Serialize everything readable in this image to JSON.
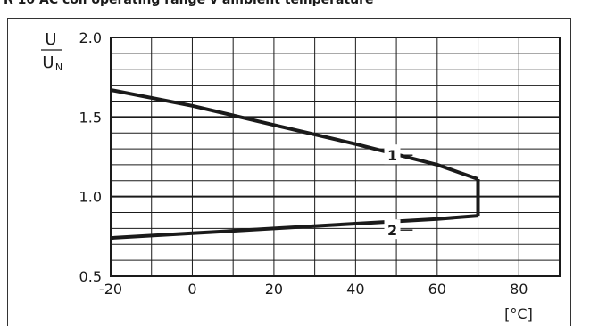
{
  "title": "R 10 AC coil operating range v ambient temperature",
  "chart_data": {
    "type": "line",
    "title": "AC coil operating range v ambient temperature",
    "xlabel": "[°C]",
    "ylabel": {
      "main": "U",
      "sub_base": "U",
      "sub_index": "N"
    },
    "xlim": [
      -20,
      90
    ],
    "ylim": [
      0.5,
      2.0
    ],
    "x_ticks": [
      "-20",
      "0",
      "20",
      "40",
      "60",
      "80"
    ],
    "y_ticks": [
      "0.5",
      "1.0",
      "1.5",
      "2.0"
    ],
    "minor_grid": {
      "x_step": 10,
      "y_step": 0.1
    },
    "major_grid_y": [
      1.0,
      1.5
    ],
    "grid": true,
    "series": [
      {
        "name": "1",
        "x": [
          -20,
          0,
          20,
          40,
          60,
          70
        ],
        "y": [
          1.67,
          1.57,
          1.45,
          1.33,
          1.2,
          1.11
        ]
      },
      {
        "name": "2",
        "x": [
          -20,
          0,
          20,
          40,
          60,
          70
        ],
        "y": [
          0.74,
          0.77,
          0.8,
          0.83,
          0.86,
          0.88
        ]
      },
      {
        "name": "",
        "x": [
          70,
          70
        ],
        "y": [
          1.11,
          0.88
        ]
      }
    ],
    "annotations": [
      {
        "text": "1",
        "x": 49,
        "y": 1.26,
        "target_x": 54,
        "target_y": 1.26
      },
      {
        "text": "2",
        "x": 49,
        "y": 0.79,
        "target_x": 54,
        "target_y": 0.79
      }
    ]
  }
}
